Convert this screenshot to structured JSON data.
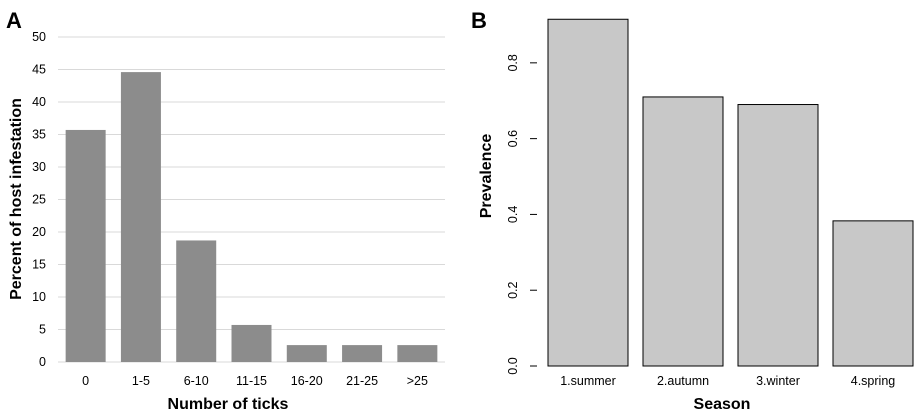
{
  "chart_data": [
    {
      "panel": "A",
      "type": "bar",
      "categories": [
        "0",
        "1-5",
        "6-10",
        "11-15",
        "16-20",
        "21-25",
        ">25"
      ],
      "values": [
        35.7,
        44.6,
        18.7,
        5.7,
        2.6,
        2.6,
        2.6
      ],
      "xlabel": "Number of ticks",
      "ylabel": "Percent of host infestation",
      "ylim": [
        0,
        50
      ],
      "yticks": [
        0,
        5,
        10,
        15,
        20,
        25,
        30,
        35,
        40,
        45,
        50
      ],
      "grid": true,
      "bar_color": "#8c8c8c",
      "grid_color": "#d9d9d9"
    },
    {
      "panel": "B",
      "type": "bar",
      "categories": [
        "1.summer",
        "2.autumn",
        "3.winter",
        "4.spring"
      ],
      "values": [
        0.915,
        0.71,
        0.69,
        0.383
      ],
      "xlabel": "Season",
      "ylabel": "Prevalence",
      "ylim": [
        0,
        0.95
      ],
      "yticks": [
        "0.0",
        "0.2",
        "0.4",
        "0.6",
        "0.8"
      ],
      "grid": false,
      "bar_color": "#c8c8c8",
      "bar_edge_color": "#000000"
    }
  ]
}
